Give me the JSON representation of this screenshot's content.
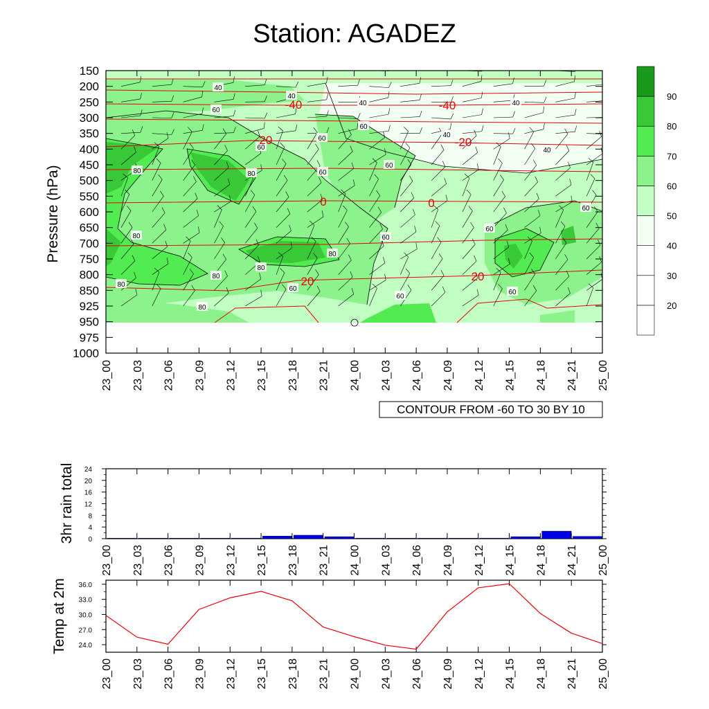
{
  "title": "Station: AGADEZ",
  "time_labels": [
    "23_00",
    "23_03",
    "23_06",
    "23_09",
    "23_12",
    "23_15",
    "23_18",
    "23_21",
    "24_00",
    "24_03",
    "24_06",
    "24_09",
    "24_12",
    "24_15",
    "24_18",
    "24_21",
    "25_00"
  ],
  "chart_data": [
    {
      "type": "heatmap",
      "name": "humidity-temperature-cross-section",
      "ylabel": "Pressure (hPa)",
      "y_ticks": [
        "150",
        "200",
        "250",
        "300",
        "350",
        "400",
        "450",
        "500",
        "550",
        "600",
        "650",
        "700",
        "750",
        "800",
        "850",
        "925",
        "950",
        "975",
        "1000"
      ],
      "annotation": "CONTOUR FROM -60 TO 30 BY 10",
      "colorbar": {
        "ticks": [
          "20",
          "30",
          "40",
          "50",
          "60",
          "70",
          "80",
          "90"
        ],
        "colors": [
          "#ffffff",
          "#ffffff",
          "#ffffff",
          "#f2fff2",
          "#c2ffc2",
          "#8cf28c",
          "#52ec52",
          "#38c838",
          "#1a9a1a"
        ]
      },
      "shaded_labels": [
        "40",
        "40",
        "40",
        "40",
        "40",
        "40",
        "60",
        "60",
        "60",
        "60",
        "60",
        "60",
        "60",
        "60",
        "60",
        "60",
        "60",
        "60",
        "80",
        "80",
        "80",
        "80",
        "80",
        "80",
        "80",
        "80"
      ],
      "temperature_contour_labels": [
        "-40",
        "-40",
        "-20",
        "-20",
        "0",
        "0",
        "20",
        "20"
      ],
      "line_color": "#e8000b"
    },
    {
      "type": "bar",
      "name": "rain",
      "ylabel": "3hr rain total",
      "ylim": [
        0,
        24
      ],
      "yticks": [
        "0",
        "4",
        "8",
        "12",
        "16",
        "20",
        "24"
      ],
      "values": [
        0,
        0,
        0,
        0,
        0.2,
        0.9,
        1.2,
        0.7,
        0.2,
        0,
        0,
        0,
        0.2,
        0.7,
        2.6,
        0.8
      ],
      "color": "#0000e6"
    },
    {
      "type": "line",
      "name": "temp",
      "ylabel": "Temp at 2m",
      "ylim": [
        22.5,
        36.8
      ],
      "yticks": [
        "24.0",
        "27.0",
        "30.0",
        "33.0",
        "36.0"
      ],
      "values": [
        29.8,
        25.5,
        24.1,
        31.0,
        33.3,
        34.6,
        32.7,
        27.5,
        25.6,
        23.9,
        23.1,
        30.5,
        35.3,
        36.1,
        30.2,
        26.3,
        24.2
      ],
      "color": "#e8000b"
    }
  ]
}
